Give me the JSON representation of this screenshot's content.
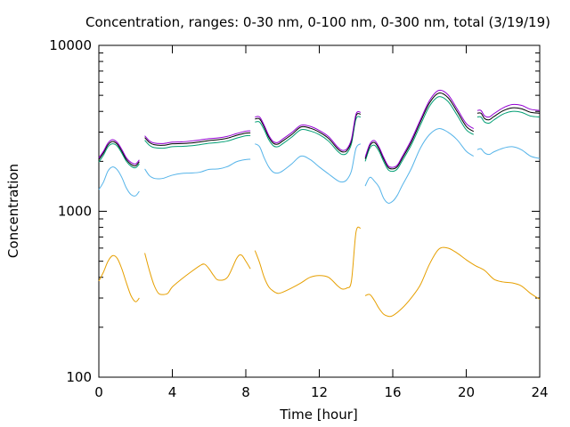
{
  "chart_data": {
    "type": "line",
    "title": "Concentration, ranges: 0-30 nm, 0-100 nm, 0-300 nm, total (3/19/19)",
    "xlabel": "Time [hour]",
    "ylabel": "Concentration",
    "xlim": [
      0,
      24
    ],
    "ylim": [
      100,
      10000
    ],
    "yscale": "log",
    "grid": false,
    "legend": "none",
    "x_ticks": [
      "0",
      "4",
      "8",
      "12",
      "16",
      "20",
      "24"
    ],
    "x_tick_values": [
      0,
      4,
      8,
      12,
      16,
      20,
      24
    ],
    "y_ticks": [
      "100",
      "1000",
      "10000"
    ],
    "y_tick_values": [
      100,
      1000,
      10000
    ],
    "series": [
      {
        "color": "#e69f00",
        "segments": [
          {
            "x": [
              0,
              0.25,
              0.5,
              0.75,
              1.0,
              1.25,
              1.5,
              1.75,
              2.0,
              2.2
            ],
            "y": [
              380,
              430,
              500,
              540,
              520,
              450,
              370,
              310,
              285,
              300
            ]
          },
          {
            "x": [
              2.5,
              2.75,
              3.0,
              3.25,
              3.5,
              3.75,
              4.0,
              4.5,
              5.0,
              5.5,
              5.75,
              6.0,
              6.25,
              6.5,
              7.0,
              7.5,
              7.75,
              8.0,
              8.25
            ],
            "y": [
              560,
              440,
              360,
              320,
              315,
              320,
              350,
              390,
              430,
              470,
              480,
              450,
              410,
              385,
              400,
              520,
              545,
              500,
              450
            ]
          },
          {
            "x": [
              8.5,
              8.75,
              9.0,
              9.25,
              9.5,
              9.75,
              10.0,
              10.5,
              11.0,
              11.5,
              12.0,
              12.5,
              13.0,
              13.25,
              13.5,
              13.75,
              14.0,
              14.25
            ],
            "y": [
              580,
              490,
              400,
              350,
              330,
              320,
              325,
              345,
              370,
              400,
              410,
              400,
              355,
              340,
              345,
              380,
              750,
              790
            ]
          },
          {
            "x": [
              14.5,
              14.75,
              15.0,
              15.25,
              15.5,
              15.75,
              16.0,
              16.5,
              17.0,
              17.5,
              18.0,
              18.5,
              19.0,
              19.5,
              20.0,
              20.5,
              21.0,
              21.5,
              22.0,
              22.5,
              23.0,
              23.5,
              24.0
            ],
            "y": [
              310,
              315,
              290,
              260,
              240,
              233,
              235,
              260,
              300,
              360,
              480,
              590,
              600,
              560,
              510,
              470,
              440,
              390,
              375,
              370,
              355,
              320,
              295
            ]
          }
        ]
      },
      {
        "color": "#56b4e9",
        "segments": [
          {
            "x": [
              0,
              0.25,
              0.5,
              0.75,
              1.0,
              1.25,
              1.5,
              1.75,
              2.0,
              2.2
            ],
            "y": [
              1350,
              1500,
              1750,
              1850,
              1780,
              1600,
              1380,
              1260,
              1240,
              1320
            ]
          },
          {
            "x": [
              2.5,
              2.75,
              3.0,
              3.25,
              3.5,
              4.0,
              4.5,
              5.0,
              5.5,
              6.0,
              6.5,
              7.0,
              7.5,
              8.0,
              8.25
            ],
            "y": [
              1800,
              1640,
              1580,
              1570,
              1580,
              1650,
              1690,
              1700,
              1720,
              1790,
              1800,
              1860,
              1990,
              2050,
              2060
            ]
          },
          {
            "x": [
              8.5,
              8.75,
              9.0,
              9.25,
              9.5,
              9.75,
              10.0,
              10.5,
              11.0,
              11.5,
              12.0,
              12.5,
              13.0,
              13.25,
              13.5,
              13.75,
              14.0,
              14.25
            ],
            "y": [
              2550,
              2450,
              2100,
              1850,
              1720,
              1700,
              1750,
              1930,
              2150,
              2050,
              1850,
              1680,
              1530,
              1500,
              1550,
              1750,
              2400,
              2550
            ]
          },
          {
            "x": [
              14.5,
              14.75,
              15.0,
              15.25,
              15.5,
              15.75,
              16.0,
              16.25,
              16.5,
              17.0,
              17.5,
              18.0,
              18.5,
              19.0,
              19.5,
              20.0,
              20.4
            ],
            "y": [
              1420,
              1600,
              1520,
              1400,
              1200,
              1120,
              1150,
              1250,
              1420,
              1800,
              2400,
              2900,
              3150,
              3000,
              2700,
              2300,
              2150
            ]
          },
          {
            "x": [
              20.6,
              20.8,
              21.0,
              21.25,
              21.5,
              22.0,
              22.5,
              23.0,
              23.5,
              24.0
            ],
            "y": [
              2350,
              2380,
              2250,
              2200,
              2280,
              2400,
              2450,
              2350,
              2150,
              2080
            ]
          }
        ]
      },
      {
        "color": "#009e73",
        "segments": [
          {
            "x": [
              0,
              0.25,
              0.5,
              0.75,
              1.0,
              1.25,
              1.5,
              1.75,
              2.0,
              2.2
            ],
            "y": [
              1980,
              2180,
              2450,
              2550,
              2470,
              2240,
              2000,
              1870,
              1830,
              1930
            ]
          },
          {
            "x": [
              2.5,
              2.75,
              3.0,
              3.5,
              4.0,
              4.5,
              5.0,
              5.5,
              6.0,
              6.5,
              7.0,
              7.5,
              8.0,
              8.25
            ],
            "y": [
              2680,
              2500,
              2420,
              2400,
              2450,
              2460,
              2480,
              2520,
              2570,
              2600,
              2650,
              2760,
              2850,
              2860
            ]
          },
          {
            "x": [
              8.5,
              8.75,
              9.0,
              9.25,
              9.5,
              9.75,
              10.0,
              10.5,
              11.0,
              11.5,
              12.0,
              12.5,
              13.0,
              13.25,
              13.5,
              13.75,
              14.0,
              14.25
            ],
            "y": [
              3450,
              3450,
              3100,
              2700,
              2480,
              2450,
              2550,
              2800,
              3100,
              3050,
              2900,
              2650,
              2300,
              2200,
              2240,
              2550,
              3600,
              3700
            ]
          },
          {
            "x": [
              14.5,
              14.75,
              15.0,
              15.25,
              15.5,
              15.75,
              16.0,
              16.25,
              16.5,
              17.0,
              17.5,
              18.0,
              18.5,
              19.0,
              19.5,
              20.0,
              20.4
            ],
            "y": [
              2000,
              2400,
              2500,
              2300,
              2000,
              1780,
              1740,
              1800,
              2000,
              2500,
              3300,
              4300,
              4900,
              4600,
              3800,
              3100,
              2900
            ]
          },
          {
            "x": [
              20.6,
              20.8,
              21.0,
              21.25,
              21.5,
              22.0,
              22.5,
              23.0,
              23.5,
              24.0
            ],
            "y": [
              3700,
              3700,
              3450,
              3400,
              3550,
              3850,
              4000,
              3950,
              3750,
              3700
            ]
          }
        ]
      },
      {
        "color": "#000000",
        "segments": [
          {
            "x": [
              0,
              0.25,
              0.5,
              0.75,
              1.0,
              1.25,
              1.5,
              1.75,
              2.0,
              2.2
            ],
            "y": [
              2050,
              2250,
              2520,
              2630,
              2540,
              2300,
              2050,
              1920,
              1880,
              1990
            ]
          },
          {
            "x": [
              2.5,
              2.75,
              3.0,
              3.5,
              4.0,
              4.5,
              5.0,
              5.5,
              6.0,
              6.5,
              7.0,
              7.5,
              8.0,
              8.25
            ],
            "y": [
              2780,
              2600,
              2520,
              2500,
              2550,
              2560,
              2580,
              2620,
              2670,
              2700,
              2760,
              2870,
              2960,
              2970
            ]
          },
          {
            "x": [
              8.5,
              8.75,
              9.0,
              9.25,
              9.5,
              9.75,
              10.0,
              10.5,
              11.0,
              11.5,
              12.0,
              12.5,
              13.0,
              13.25,
              13.5,
              13.75,
              14.0,
              14.25
            ],
            "y": [
              3600,
              3600,
              3220,
              2800,
              2570,
              2540,
              2650,
              2900,
              3220,
              3170,
              3000,
              2750,
              2380,
              2280,
              2320,
              2650,
              3750,
              3850
            ]
          },
          {
            "x": [
              14.5,
              14.75,
              15.0,
              15.25,
              15.5,
              15.75,
              16.0,
              16.25,
              16.5,
              17.0,
              17.5,
              18.0,
              18.5,
              19.0,
              19.5,
              20.0,
              20.4
            ],
            "y": [
              2070,
              2480,
              2600,
              2380,
              2070,
              1840,
              1800,
              1860,
              2070,
              2600,
              3450,
              4500,
              5150,
              4850,
              4000,
              3250,
              3030
            ]
          },
          {
            "x": [
              20.6,
              20.8,
              21.0,
              21.25,
              21.5,
              22.0,
              22.5,
              23.0,
              23.5,
              24.0
            ],
            "y": [
              3900,
              3900,
              3620,
              3560,
              3720,
              4030,
              4200,
              4150,
              3950,
              3900
            ]
          }
        ]
      },
      {
        "color": "#9400d3",
        "segments": [
          {
            "x": [
              0,
              0.25,
              0.5,
              0.75,
              1.0,
              1.25,
              1.5,
              1.75,
              2.0,
              2.2
            ],
            "y": [
              2100,
              2300,
              2580,
              2700,
              2600,
              2360,
              2100,
              1970,
              1930,
              2040
            ]
          },
          {
            "x": [
              2.5,
              2.75,
              3.0,
              3.5,
              4.0,
              4.5,
              5.0,
              5.5,
              6.0,
              6.5,
              7.0,
              7.5,
              8.0,
              8.25
            ],
            "y": [
              2850,
              2660,
              2580,
              2560,
              2610,
              2620,
              2650,
              2690,
              2740,
              2770,
              2830,
              2940,
              3040,
              3050
            ]
          },
          {
            "x": [
              8.5,
              8.75,
              9.0,
              9.25,
              9.5,
              9.75,
              10.0,
              10.5,
              11.0,
              11.5,
              12.0,
              12.5,
              13.0,
              13.25,
              13.5,
              13.75,
              14.0,
              14.25
            ],
            "y": [
              3700,
              3700,
              3300,
              2870,
              2630,
              2600,
              2720,
              2980,
              3300,
              3250,
              3070,
              2820,
              2440,
              2330,
              2380,
              2720,
              3850,
              3950
            ]
          },
          {
            "x": [
              14.5,
              14.75,
              15.0,
              15.25,
              15.5,
              15.75,
              16.0,
              16.25,
              16.5,
              17.0,
              17.5,
              18.0,
              18.5,
              19.0,
              19.5,
              20.0,
              20.4
            ],
            "y": [
              2120,
              2540,
              2670,
              2440,
              2120,
              1880,
              1840,
              1900,
              2120,
              2680,
              3550,
              4650,
              5350,
              5050,
              4150,
              3380,
              3150
            ]
          },
          {
            "x": [
              20.6,
              20.8,
              21.0,
              21.25,
              21.5,
              22.0,
              22.5,
              23.0,
              23.5,
              24.0
            ],
            "y": [
              4050,
              4050,
              3760,
              3700,
              3870,
              4200,
              4400,
              4350,
              4120,
              4050
            ]
          }
        ]
      }
    ]
  }
}
